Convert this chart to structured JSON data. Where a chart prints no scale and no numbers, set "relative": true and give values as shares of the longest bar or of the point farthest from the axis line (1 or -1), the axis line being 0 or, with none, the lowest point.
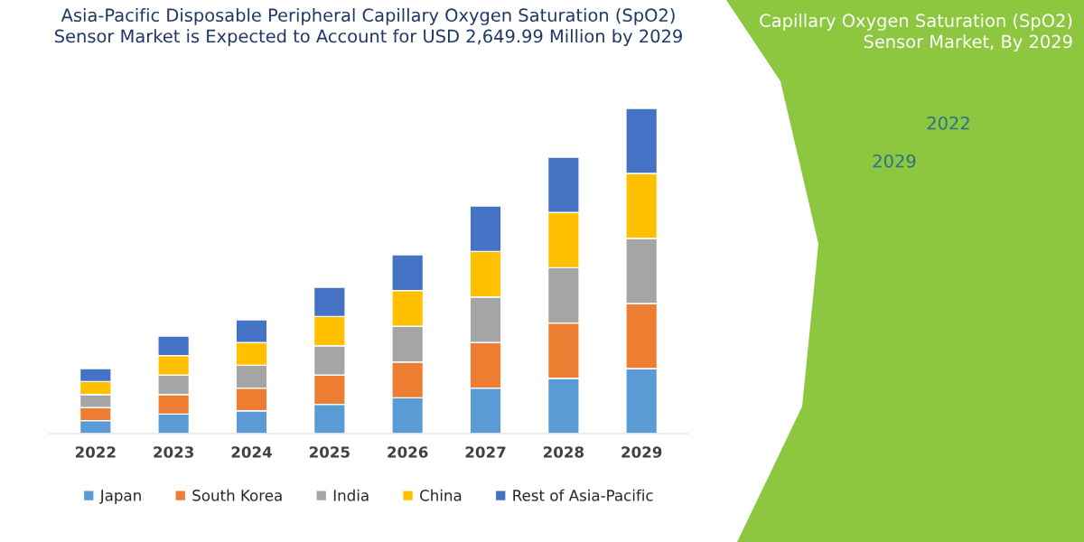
{
  "chart_data": {
    "type": "bar",
    "stacked": true,
    "relative": true,
    "title": "Asia-Pacific Disposable Peripheral Capillary Oxygen Saturation (SpO2) Sensor Market is Expected to Account for USD 2,649.99 Million by 2029",
    "categories": [
      "2022",
      "2023",
      "2024",
      "2025",
      "2026",
      "2027",
      "2028",
      "2029"
    ],
    "series": [
      {
        "name": "Japan",
        "color": "#5b9bd5",
        "values": [
          0.04,
          0.06,
          0.07,
          0.09,
          0.11,
          0.14,
          0.17,
          0.2
        ]
      },
      {
        "name": "South Korea",
        "color": "#ed7d31",
        "values": [
          0.04,
          0.06,
          0.07,
          0.09,
          0.11,
          0.14,
          0.17,
          0.2
        ]
      },
      {
        "name": "India",
        "color": "#a5a5a5",
        "values": [
          0.04,
          0.06,
          0.07,
          0.09,
          0.11,
          0.14,
          0.17,
          0.2
        ]
      },
      {
        "name": "China",
        "color": "#ffc000",
        "values": [
          0.04,
          0.06,
          0.07,
          0.09,
          0.11,
          0.14,
          0.17,
          0.2
        ]
      },
      {
        "name": "Rest of Asia-Pacific",
        "color": "#4472c4",
        "values": [
          0.04,
          0.06,
          0.07,
          0.09,
          0.11,
          0.14,
          0.17,
          0.2
        ]
      }
    ],
    "legend": "bottom",
    "grid": false,
    "annotations": [
      "Capillary Oxygen Saturation (SpO2) Sensor Market, By 2029",
      "2022",
      "2029"
    ]
  }
}
